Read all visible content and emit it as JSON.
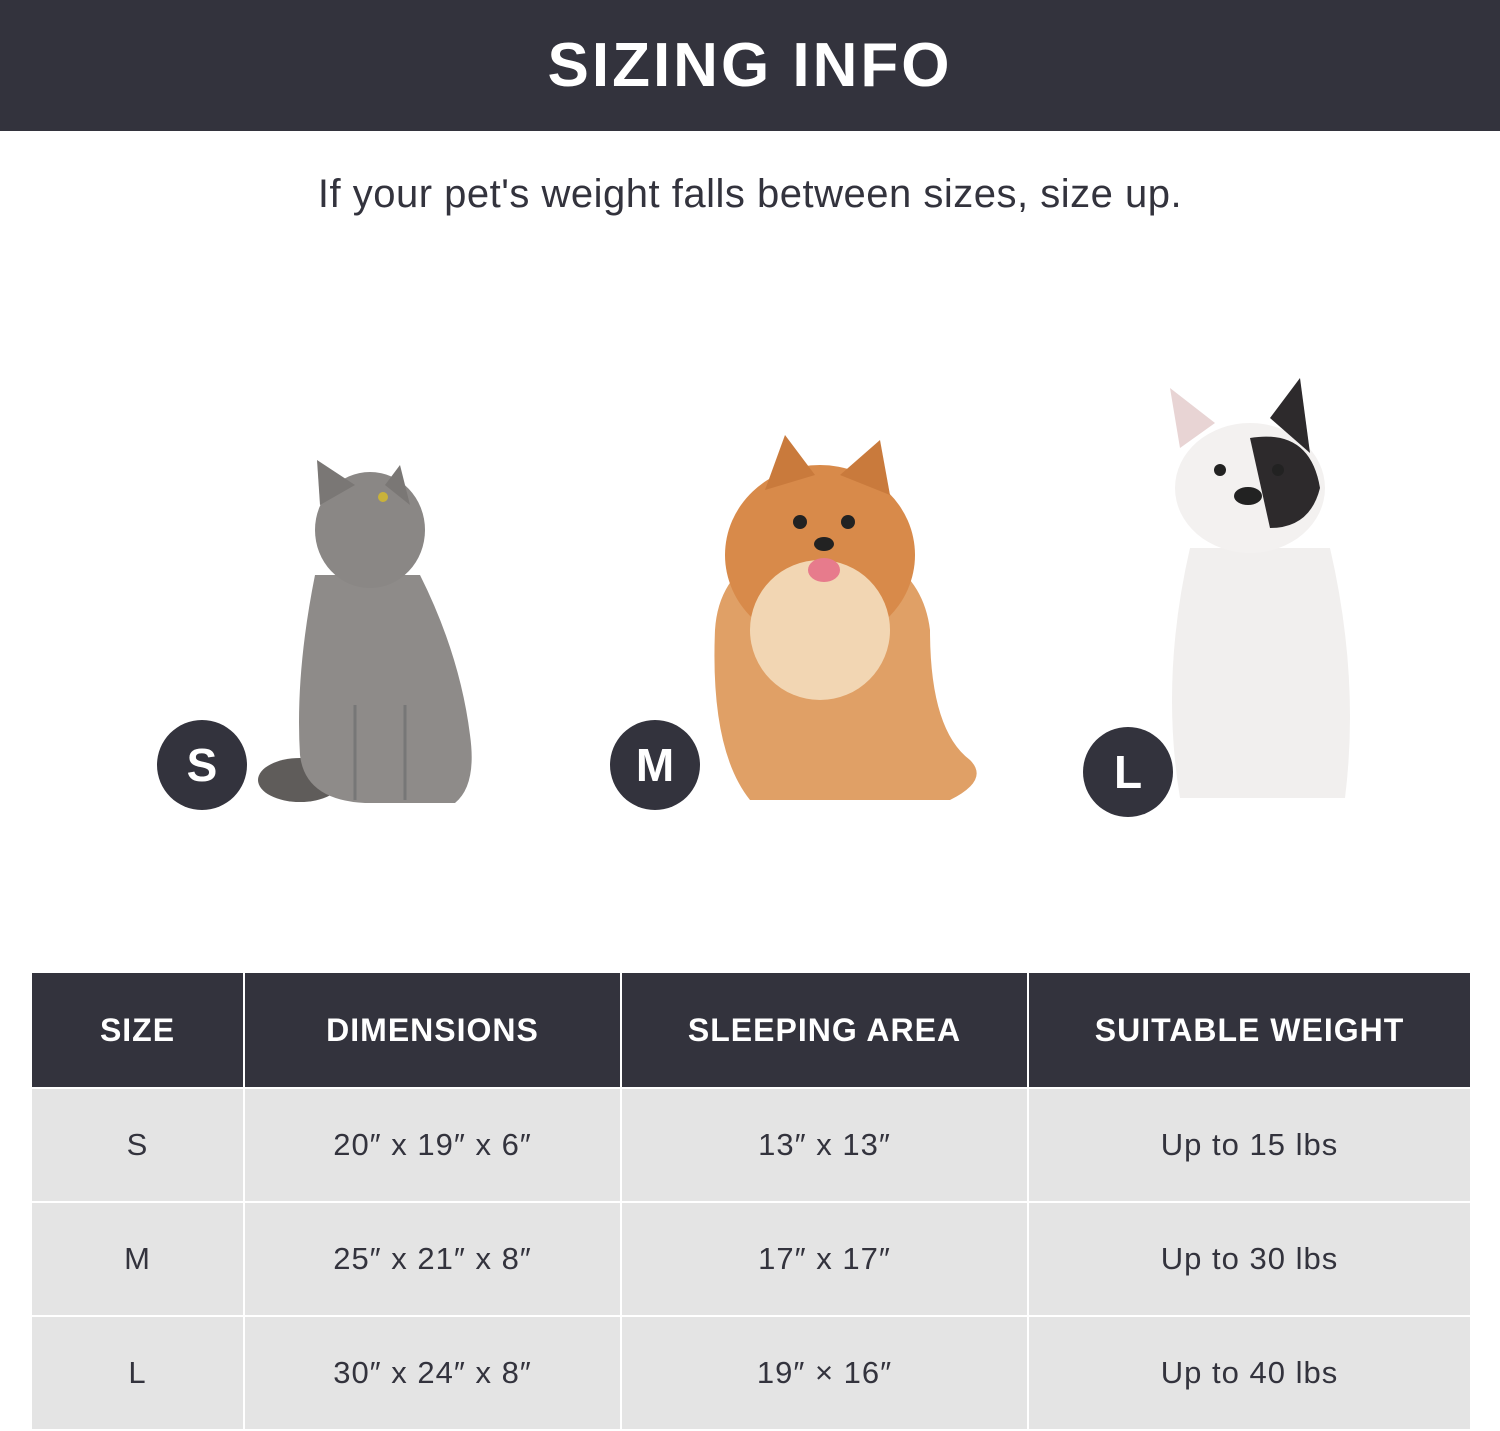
{
  "header": {
    "title": "SIZING INFO"
  },
  "subtitle": "If your pet's weight falls between sizes, size up.",
  "pets": [
    {
      "size_label": "S",
      "animal": "cat"
    },
    {
      "size_label": "M",
      "animal": "pomeranian"
    },
    {
      "size_label": "L",
      "animal": "french-bulldog"
    }
  ],
  "table": {
    "headers": [
      "SIZE",
      "DIMENSIONS",
      "SLEEPING AREA",
      "SUITABLE WEIGHT"
    ],
    "rows": [
      [
        "S",
        "20″ x 19″ x 6″",
        "13″ x 13″",
        "Up to 15 lbs"
      ],
      [
        "M",
        "25″ x 21″ x 8″",
        "17″ x 17″",
        "Up to 30 lbs"
      ],
      [
        "L",
        "30″ x 24″ x 8″",
        "19″ × 16″",
        "Up to 40 lbs"
      ]
    ]
  },
  "colors": {
    "dark": "#33333d",
    "row_bg": "#e4e4e4"
  }
}
